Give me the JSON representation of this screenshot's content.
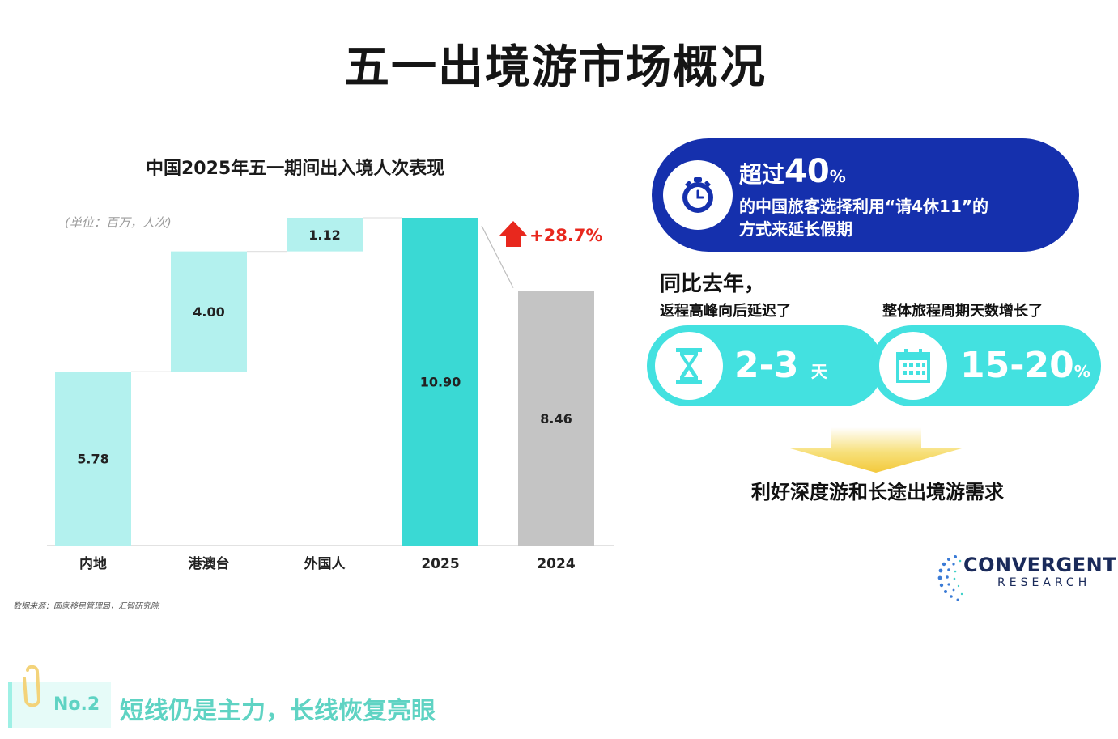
{
  "title": "五一出境游市场概况",
  "chart_data": {
    "type": "bar",
    "subtype": "waterfall",
    "title": "中国2025年五一期间出入境人次表现",
    "unit_note": "(单位：百万，人次)",
    "categories": [
      "内地",
      "港澳台",
      "外国人",
      "2025",
      "2024"
    ],
    "values": [
      5.78,
      4.0,
      1.12,
      10.9,
      8.46
    ],
    "value_labels": [
      "5.78",
      "4.00",
      "1.12",
      "10.90",
      "8.46"
    ],
    "ylim": [
      0,
      10.9
    ],
    "colors": [
      "#b3f1ee",
      "#b3f1ee",
      "#b3f1ee",
      "#3ad9d4",
      "#c4c4c4"
    ],
    "growth_annotation": "+28.7%",
    "growth_color": "#e8281e"
  },
  "source": "数据来源：国家移民管理局，汇智研究院",
  "highlight": {
    "prefix": "超过",
    "number": "40",
    "percent": "%",
    "line1": "的中国旅客选择利用“请4休11”的",
    "line2": "方式来延长假期"
  },
  "yoy_label": "同比去年，",
  "metrics": [
    {
      "caption": "返程高峰向后延迟了",
      "value": "2-3",
      "unit": "天",
      "icon": "hourglass-icon"
    },
    {
      "caption": "整体旅程周期天数增长了",
      "value": "15-20",
      "unit": "%",
      "icon": "calendar-icon"
    }
  ],
  "conclusion": "利好深度游和长途出境游需求",
  "logo": {
    "name": "CONVERGENT",
    "sub": "RESEARCH"
  },
  "section": {
    "number": "No.2",
    "title": "短线仍是主力，长线恢复亮眼"
  },
  "accent_colors": {
    "navy": "#1530ad",
    "cyan": "#43e1e0",
    "teal_text": "#5fd3c3",
    "gold": "#f3c93c"
  }
}
